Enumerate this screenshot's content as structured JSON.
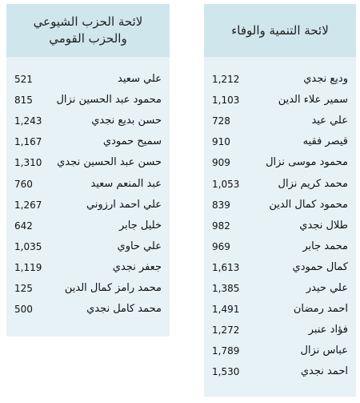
{
  "lists": [
    {
      "title": [
        "لائحة التنمية والوفاء"
      ],
      "rows": [
        [
          "وديع نجدي",
          "1,212"
        ],
        [
          "سمير علاء الدين",
          "1,103"
        ],
        [
          "علي عيد",
          "728"
        ],
        [
          "قيصر فقيه",
          "910"
        ],
        [
          "محمود موسى نزال",
          "909"
        ],
        [
          "محمد كريم نزال",
          "1,053"
        ],
        [
          "محمود كمال الدين",
          "839"
        ],
        [
          "طلال  نجدي",
          "982"
        ],
        [
          "محمد جابر",
          "969"
        ],
        [
          "كمال حمودي",
          "1,613"
        ],
        [
          "علي حيدر",
          "1,385"
        ],
        [
          "احمد رمضان",
          "1,491"
        ],
        [
          "فؤاد عنبر",
          "1,272"
        ],
        [
          "عباس نزال",
          "1,789"
        ],
        [
          "احمد  نجدي",
          "1,530"
        ]
      ]
    },
    {
      "title": [
        "لائحة الحزب الشيوعي",
        "والحزب القومي"
      ],
      "rows": [
        [
          "علي سعيد",
          "521"
        ],
        [
          "محمود عبد الحسين نزال",
          "815"
        ],
        [
          "حسن بديع نجدي",
          "1,243"
        ],
        [
          "سميح حمودي",
          "1,167"
        ],
        [
          "حسن عبد الحسين نجدي",
          "1,310"
        ],
        [
          "عبد المنعم سعيد",
          "760"
        ],
        [
          "علي احمد ارزوني",
          "1,267"
        ],
        [
          "خليل جابر",
          "642"
        ],
        [
          "علي حاوي",
          "1,035"
        ],
        [
          "جعفر نجدي",
          "1,119"
        ],
        [
          "محمد رامز كمال الدين",
          "125"
        ],
        [
          "محمد كامل نجدي",
          "500"
        ]
      ]
    }
  ]
}
